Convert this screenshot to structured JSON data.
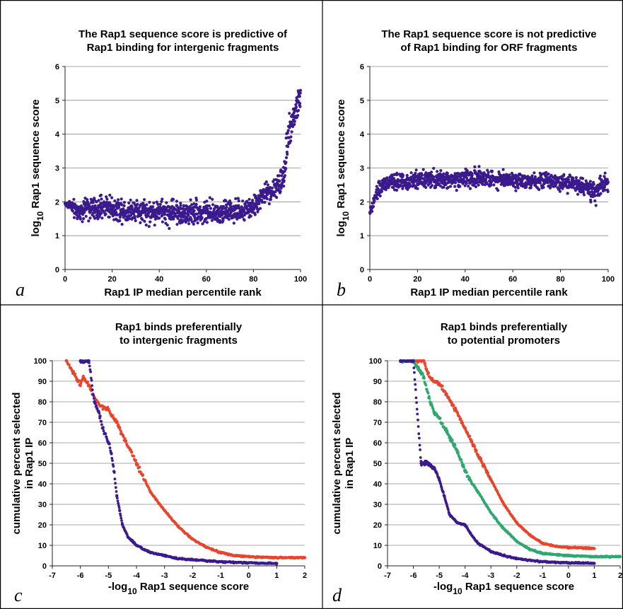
{
  "colors": {
    "purple": "#3a1a8c",
    "red": "#e8452c",
    "green": "#2fa870"
  },
  "chart_data": [
    {
      "type": "scatter",
      "panel": "a",
      "title": [
        "The Rap1 sequence score is predictive of",
        "Rap1 binding for intergenic fragments"
      ],
      "xlabel": "Rap1 IP median percentile rank",
      "ylabel": {
        "prefix": "log",
        "sub": "10",
        "rest": " Rap1 sequence score"
      },
      "xlim": [
        0,
        100
      ],
      "ylim": [
        0,
        6
      ],
      "xticks": [
        "0",
        "20",
        "40",
        "60",
        "80",
        "100"
      ],
      "yticks": [
        "0",
        "1",
        "2",
        "3",
        "4",
        "5",
        "6"
      ],
      "grid": true,
      "series": [
        {
          "color": "purple",
          "x": [
            0,
            1,
            2,
            4,
            6,
            8,
            10,
            12,
            14,
            16,
            18,
            20,
            22,
            24,
            26,
            28,
            30,
            32,
            34,
            36,
            38,
            40,
            42,
            44,
            46,
            48,
            50,
            52,
            54,
            56,
            58,
            60,
            62,
            64,
            66,
            68,
            70,
            72,
            74,
            76,
            78,
            80,
            82,
            84,
            86,
            88,
            90,
            92,
            93,
            94,
            95,
            96,
            97,
            98,
            99,
            100
          ],
          "y": [
            1.95,
            1.9,
            1.95,
            1.75,
            1.7,
            1.8,
            1.85,
            1.8,
            1.75,
            1.85,
            1.9,
            1.8,
            1.75,
            1.8,
            1.7,
            1.75,
            1.8,
            1.7,
            1.75,
            1.65,
            1.7,
            1.75,
            1.7,
            1.65,
            1.75,
            1.7,
            1.6,
            1.65,
            1.7,
            1.75,
            1.65,
            1.7,
            1.6,
            1.7,
            1.65,
            1.75,
            1.7,
            1.65,
            1.75,
            1.7,
            1.8,
            1.85,
            2.0,
            2.2,
            2.3,
            2.3,
            2.45,
            2.6,
            3.0,
            3.5,
            4.0,
            4.3,
            4.5,
            4.7,
            4.9,
            5.1
          ],
          "spread": [
            0.05,
            0.1,
            0.2,
            0.25,
            0.3,
            0.3,
            0.35,
            0.35,
            0.35,
            0.35,
            0.4,
            0.35,
            0.35,
            0.35,
            0.35,
            0.35,
            0.35,
            0.35,
            0.35,
            0.4,
            0.35,
            0.35,
            0.35,
            0.4,
            0.35,
            0.35,
            0.4,
            0.35,
            0.35,
            0.35,
            0.35,
            0.35,
            0.4,
            0.35,
            0.35,
            0.35,
            0.35,
            0.35,
            0.35,
            0.3,
            0.3,
            0.3,
            0.3,
            0.3,
            0.3,
            0.3,
            0.35,
            0.4,
            0.6,
            0.7,
            0.6,
            0.5,
            0.45,
            0.5,
            0.6,
            0.4
          ],
          "count": 1100
        }
      ]
    },
    {
      "type": "scatter",
      "panel": "b",
      "title": [
        "The Rap1 sequence score is not predictive",
        "of Rap1 binding for ORF fragments"
      ],
      "xlabel": "Rap1 IP median percentile rank",
      "ylabel": {
        "prefix": "log",
        "sub": "10",
        "rest": " Rap1 sequence score"
      },
      "xlim": [
        0,
        100
      ],
      "ylim": [
        0,
        6
      ],
      "xticks": [
        "0",
        "20",
        "40",
        "60",
        "80",
        "100"
      ],
      "yticks": [
        "0",
        "1",
        "2",
        "3",
        "4",
        "5",
        "6"
      ],
      "grid": true,
      "series": [
        {
          "color": "purple",
          "x": [
            0,
            1,
            2,
            4,
            6,
            8,
            10,
            15,
            20,
            30,
            40,
            50,
            60,
            70,
            80,
            85,
            90,
            93,
            95,
            97,
            100
          ],
          "y": [
            1.7,
            1.8,
            2.1,
            2.4,
            2.5,
            2.55,
            2.6,
            2.6,
            2.65,
            2.65,
            2.7,
            2.7,
            2.65,
            2.65,
            2.6,
            2.55,
            2.45,
            2.3,
            2.3,
            2.45,
            2.6
          ],
          "spread": [
            0.1,
            0.15,
            0.2,
            0.25,
            0.25,
            0.25,
            0.25,
            0.25,
            0.25,
            0.25,
            0.3,
            0.25,
            0.25,
            0.25,
            0.25,
            0.25,
            0.25,
            0.35,
            0.35,
            0.3,
            0.25
          ],
          "count": 1100
        }
      ]
    },
    {
      "type": "scatter",
      "panel": "c",
      "title": [
        "Rap1 binds preferentially",
        "to intergenic fragments"
      ],
      "xlabel": {
        "prefix": "-log",
        "sub": "10",
        "rest": " Rap1 sequence score"
      },
      "ylabel": [
        "cumulative percent selected",
        "in Rap1 IP"
      ],
      "xlim": [
        -7,
        2
      ],
      "ylim": [
        0,
        100
      ],
      "xticks": [
        "-7",
        "-6",
        "-5",
        "-4",
        "-3",
        "-2",
        "-1",
        "0",
        "1",
        "2"
      ],
      "yticks": [
        "0",
        "10",
        "20",
        "30",
        "40",
        "50",
        "60",
        "70",
        "80",
        "90",
        "100"
      ],
      "grid": true,
      "series": [
        {
          "color": "red",
          "x": [
            -6.5,
            -6.0,
            -5.9,
            -5.7,
            -5.5,
            -5.3,
            -5.0,
            -4.7,
            -4.5,
            -4.0,
            -3.5,
            -3.0,
            -2.5,
            -2.0,
            -1.5,
            -1.0,
            -0.5,
            0.0,
            0.5,
            1.0,
            1.5,
            2.0
          ],
          "y": [
            100,
            88,
            92,
            88,
            82,
            78,
            76,
            70,
            64,
            50,
            36,
            27,
            19,
            13,
            9,
            6.5,
            5,
            4.5,
            4.2,
            4,
            4,
            4
          ]
        },
        {
          "color": "purple",
          "x": [
            -6.0,
            -5.7,
            -5.5,
            -5.3,
            -5.2,
            -5.0,
            -4.9,
            -4.8,
            -4.7,
            -4.6,
            -4.5,
            -4.3,
            -4.0,
            -3.5,
            -3.0,
            -2.5,
            -2.0,
            -1.0,
            0.0,
            0.5,
            1.0
          ],
          "y": [
            100,
            100,
            80,
            73,
            67,
            60,
            55,
            46,
            34,
            27,
            20,
            14,
            10,
            6.5,
            5,
            3.5,
            3,
            2,
            1.5,
            1.3,
            1.2
          ]
        }
      ]
    },
    {
      "type": "scatter",
      "panel": "d",
      "title": [
        "Rap1 binds preferentially",
        "to potential promoters"
      ],
      "xlabel": {
        "prefix": "-log",
        "sub": "10",
        "rest": " Rap1 sequence score"
      },
      "ylabel": [
        "cumulative percent selected",
        "in Rap1 IP"
      ],
      "xlim": [
        -7,
        2
      ],
      "ylim": [
        0,
        100
      ],
      "xticks": [
        "-7",
        "-6",
        "-5",
        "-4",
        "-3",
        "-2",
        "-1",
        "0",
        "1",
        "2"
      ],
      "yticks": [
        "0",
        "10",
        "20",
        "30",
        "40",
        "50",
        "60",
        "70",
        "80",
        "90",
        "100"
      ],
      "grid": true,
      "series": [
        {
          "color": "red",
          "x": [
            -6.0,
            -5.6,
            -5.5,
            -5.3,
            -5.0,
            -4.5,
            -4.0,
            -3.5,
            -3.0,
            -2.5,
            -2.0,
            -1.5,
            -1.0,
            -0.5,
            0.0,
            0.5,
            1.0
          ],
          "y": [
            100,
            100,
            96,
            91,
            89,
            79,
            67,
            54,
            42,
            30,
            21,
            15,
            11,
            9.5,
            9,
            8.8,
            8.5
          ]
        },
        {
          "color": "green",
          "x": [
            -6.5,
            -6.0,
            -5.6,
            -5.4,
            -5.2,
            -5.0,
            -4.7,
            -4.3,
            -4.0,
            -3.5,
            -3.0,
            -2.5,
            -2.0,
            -1.5,
            -1.0,
            0.0,
            1.0,
            2.0
          ],
          "y": [
            100,
            100,
            92,
            82,
            75,
            72,
            65,
            56,
            46,
            36,
            26,
            18,
            12,
            8,
            6,
            5,
            4.5,
            4.5
          ]
        },
        {
          "color": "purple",
          "x": [
            -6.5,
            -6.0,
            -5.7,
            -5.5,
            -5.2,
            -5.0,
            -4.8,
            -4.6,
            -4.3,
            -4.0,
            -3.8,
            -3.5,
            -3.0,
            -2.5,
            -2.0,
            -1.0,
            0.0,
            1.0
          ],
          "y": [
            100,
            100,
            50,
            50,
            48,
            42,
            34,
            25,
            21,
            20,
            16,
            11,
            7,
            5,
            3.5,
            2,
            1.5,
            1.2
          ]
        }
      ]
    }
  ]
}
